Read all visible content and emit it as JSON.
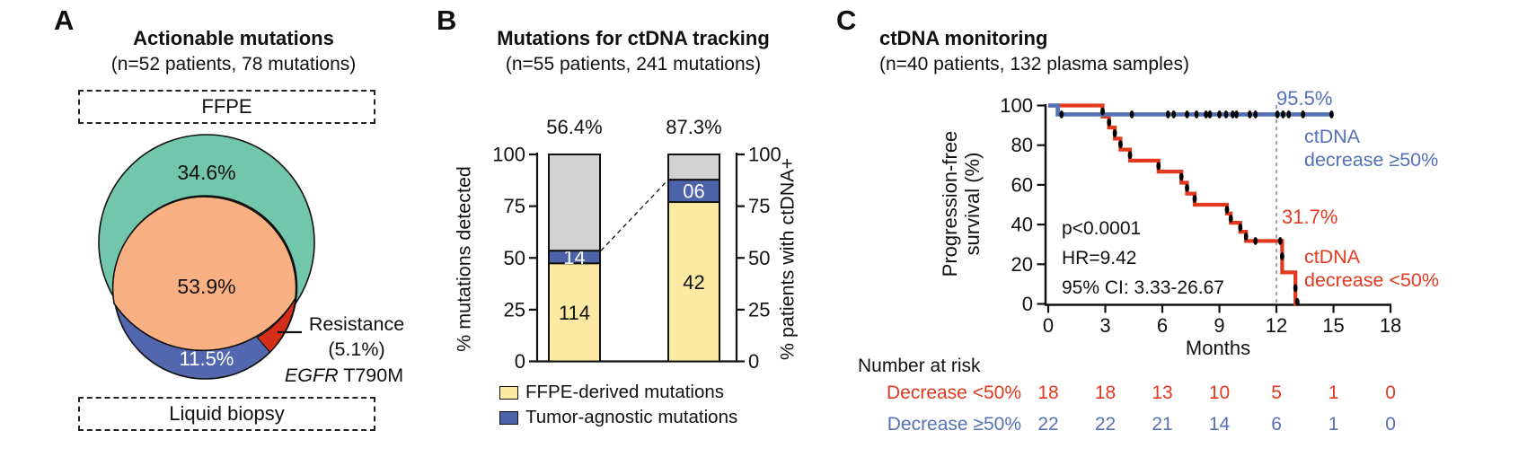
{
  "panels": {
    "a": {
      "letter": "A"
    },
    "b": {
      "letter": "B"
    },
    "c": {
      "letter": "C"
    }
  },
  "chart_data": [
    {
      "type": "venn",
      "panel": "A",
      "title": "Actionable mutations",
      "subtitle": "(n=52 patients, 78 mutations)",
      "top_set_label": "FFPE",
      "bottom_set_label": "Liquid biopsy",
      "regions": {
        "ffpe_only": {
          "label": "34.6%",
          "color": "#72c6ac"
        },
        "overlap": {
          "label": "53.9%",
          "color": "#f9b083"
        },
        "liquid_only": {
          "label": "11.5%",
          "color": "#5267ae"
        },
        "resistance": {
          "label_line1": "Resistance",
          "label_line2": "(5.1%)",
          "gene": "EGFR",
          "variant": " T790M",
          "color": "#d42d18"
        }
      }
    },
    {
      "type": "bar",
      "panel": "B",
      "stacked": true,
      "title": "Mutations for ctDNA tracking",
      "subtitle": "(n=55 patients, 241 mutations)",
      "ylabel_left": "% mutations detected",
      "ylabel_right": "% patients with ctDNA+",
      "yticks": [
        0,
        25,
        50,
        75,
        100
      ],
      "ylim": [
        0,
        100
      ],
      "bars": [
        {
          "top_label": "56.4%",
          "segments": [
            {
              "series": "FFPE-derived mutations",
              "label": "114",
              "from": 0,
              "to": 47.4
            },
            {
              "series": "Tumor-agnostic mutations",
              "label": "14",
              "from": 47.4,
              "to": 53.5
            },
            {
              "series": "undetected",
              "label": "",
              "from": 53.5,
              "to": 100
            }
          ]
        },
        {
          "top_label": "87.3%",
          "segments": [
            {
              "series": "FFPE-derived mutations",
              "label": "42",
              "from": 0,
              "to": 77
            },
            {
              "series": "Tumor-agnostic mutations",
              "label": "06",
              "from": 77,
              "to": 87.8
            },
            {
              "series": "undetected",
              "label": "",
              "from": 87.8,
              "to": 100
            }
          ]
        }
      ],
      "legend": [
        {
          "label": "FFPE-derived mutations",
          "color": "#fce9a2"
        },
        {
          "label": "Tumor-agnostic mutations",
          "color": "#4d63a9"
        }
      ],
      "segment_colors": [
        "#fce9a2",
        "#4d63a9",
        "#d2d2d2"
      ]
    },
    {
      "type": "line",
      "subtype": "kaplan-meier",
      "panel": "C",
      "title": "ctDNA monitoring",
      "subtitle": "(n=40 patients, 132 plasma samples)",
      "xlabel": "Months",
      "ylabel_line1": "Progression-free",
      "ylabel_line2": "survival (%)",
      "xticks": [
        0,
        3,
        6,
        9,
        12,
        15,
        18
      ],
      "yticks": [
        0,
        20,
        40,
        60,
        80,
        100
      ],
      "xlim": [
        0,
        18
      ],
      "ylim": [
        0,
        100
      ],
      "reference_line_x": 12,
      "stats": {
        "p": "p<0.0001",
        "hr": "HR=9.42",
        "ci": "95% CI: 3.33-26.67"
      },
      "series": [
        {
          "name": "ctDNA decrease ≥50%",
          "color": "#5571b5",
          "end_label": "95.5%",
          "label_line1": "ctDNA",
          "label_line2": "decrease ≥50%",
          "steps": [
            [
              0,
              100
            ],
            [
              0.5,
              100
            ],
            [
              0.5,
              95.5
            ],
            [
              15.0,
              95.5
            ]
          ],
          "censor_y": 95.5,
          "censor_months": [
            0.7,
            4.4,
            6.3,
            6.6,
            7.3,
            7.8,
            8.3,
            8.5,
            9.0,
            9.35,
            9.7,
            9.9,
            10.6,
            10.9,
            12.05,
            12.35,
            12.65,
            13.4,
            14.9
          ]
        },
        {
          "name": "ctDNA decrease <50%",
          "color": "#e2391f",
          "end_label": "31.7%",
          "label_line1": "ctDNA",
          "label_line2": "decrease <50%",
          "steps": [
            [
              0,
              100
            ],
            [
              2.86,
              100
            ],
            [
              2.86,
              94.4
            ],
            [
              3.2,
              94.4
            ],
            [
              3.2,
              88.9
            ],
            [
              3.5,
              88.9
            ],
            [
              3.5,
              83.3
            ],
            [
              3.8,
              83.3
            ],
            [
              3.8,
              77.8
            ],
            [
              4.3,
              77.8
            ],
            [
              4.3,
              72.2
            ],
            [
              5.8,
              72.2
            ],
            [
              5.8,
              66.7
            ],
            [
              7.0,
              66.7
            ],
            [
              7.0,
              61.1
            ],
            [
              7.3,
              61.1
            ],
            [
              7.3,
              55.6
            ],
            [
              7.7,
              55.6
            ],
            [
              7.7,
              50
            ],
            [
              9.4,
              50
            ],
            [
              9.4,
              45.5
            ],
            [
              9.6,
              45.5
            ],
            [
              9.6,
              40.9
            ],
            [
              10.1,
              40.9
            ],
            [
              10.1,
              36.4
            ],
            [
              10.4,
              36.4
            ],
            [
              10.4,
              31.7
            ],
            [
              12.3,
              31.7
            ],
            [
              12.3,
              15.9
            ],
            [
              13.0,
              15.9
            ],
            [
              13.0,
              0
            ],
            [
              13.15,
              0
            ]
          ],
          "marker_points": [
            [
              2.86,
              97
            ],
            [
              3.2,
              91.5
            ],
            [
              3.5,
              86
            ],
            [
              3.8,
              80.5
            ],
            [
              4.3,
              75
            ],
            [
              5.8,
              69.5
            ],
            [
              7.0,
              64
            ],
            [
              7.3,
              58.5
            ],
            [
              7.7,
              53
            ],
            [
              9.4,
              47.5
            ],
            [
              9.6,
              43
            ],
            [
              10.1,
              38.5
            ],
            [
              10.4,
              34
            ],
            [
              10.9,
              31.7
            ],
            [
              12.2,
              31.7
            ],
            [
              12.3,
              24
            ],
            [
              13.0,
              8
            ],
            [
              13.1,
              1
            ]
          ]
        }
      ],
      "at_risk": {
        "header": "Number at risk",
        "rows": [
          {
            "label": "Decrease <50%",
            "color": "#e2391f",
            "values": [
              18,
              18,
              13,
              10,
              5,
              1,
              0
            ]
          },
          {
            "label": "Decrease ≥50%",
            "color": "#5571b5",
            "values": [
              22,
              22,
              21,
              14,
              6,
              1,
              0
            ]
          }
        ]
      }
    }
  ]
}
